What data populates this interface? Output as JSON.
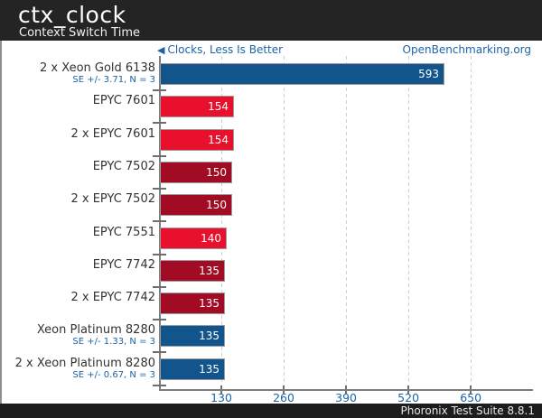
{
  "header": {
    "title": "ctx_clock",
    "subtitle": "Context Switch Time"
  },
  "meta": {
    "left_arrow": "◀",
    "left_note": "Clocks, Less Is Better",
    "right_link": "OpenBenchmarking.org"
  },
  "footer": {
    "text": "Phoronix Test Suite 8.8.1"
  },
  "colors": {
    "header_bg": "#242424",
    "footer_bg": "#1d1d1d",
    "bar_blue": "#12548c",
    "bar_red": "#e8102d",
    "bar_dark_red": "#a10c24",
    "accent_blue_text": "#1b64a7",
    "grid": "#cfcfcf",
    "axis": "#7d7d7d",
    "bar_border": "#9c9c9c"
  },
  "chart_data": {
    "type": "bar",
    "orientation": "horizontal",
    "title": "ctx_clock",
    "subtitle": "Context Switch Time",
    "unit": "Clocks",
    "better": "Less Is Better",
    "xlabel": "Clocks",
    "ylabel": "",
    "xticks": [
      130,
      260,
      390,
      520,
      650
    ],
    "xlim": [
      0,
      780
    ],
    "grid": "vertical-dashed",
    "legend_position": "none",
    "categories": [
      "2 x Xeon Gold 6138",
      "EPYC 7601",
      "2 x EPYC 7601",
      "EPYC 7502",
      "2 x EPYC 7502",
      "EPYC 7551",
      "EPYC 7742",
      "2 x EPYC 7742",
      "Xeon Platinum 8280",
      "2 x Xeon Platinum 8280"
    ],
    "values": [
      593,
      154,
      154,
      150,
      150,
      140,
      135,
      135,
      135,
      135
    ],
    "rows": [
      {
        "label": "2 x Xeon Gold 6138",
        "se": "SE +/- 3.71, N = 3",
        "value": 593,
        "color": "blue"
      },
      {
        "label": "EPYC 7601",
        "se": null,
        "value": 154,
        "color": "red"
      },
      {
        "label": "2 x EPYC 7601",
        "se": null,
        "value": 154,
        "color": "red"
      },
      {
        "label": "EPYC 7502",
        "se": null,
        "value": 150,
        "color": "darkred"
      },
      {
        "label": "2 x EPYC 7502",
        "se": null,
        "value": 150,
        "color": "darkred"
      },
      {
        "label": "EPYC 7551",
        "se": null,
        "value": 140,
        "color": "red"
      },
      {
        "label": "EPYC 7742",
        "se": null,
        "value": 135,
        "color": "darkred"
      },
      {
        "label": "2 x EPYC 7742",
        "se": null,
        "value": 135,
        "color": "darkred"
      },
      {
        "label": "Xeon Platinum 8280",
        "se": "SE +/- 1.33, N = 3",
        "value": 135,
        "color": "blue"
      },
      {
        "label": "2 x Xeon Platinum 8280",
        "se": "SE +/- 0.67, N = 3",
        "value": 135,
        "color": "blue"
      }
    ]
  }
}
